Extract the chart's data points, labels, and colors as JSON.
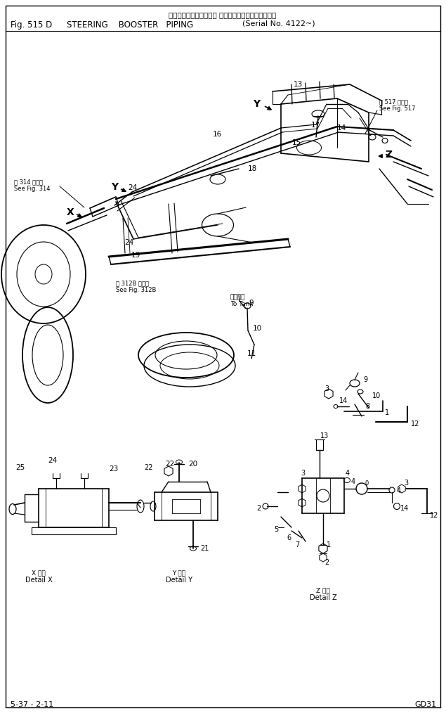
{
  "title_line1": "ステアリング　ブースタ パイピング（適　用　号　機",
  "title_line2_pre": "Fig. 515 D",
  "title_line2_main": "STEERING    BOOSTER   PIPING",
  "title_line2_paren": "(Serial No. 4122~)",
  "bottom_left": "5-37 - 2-11",
  "bottom_right": "GD31",
  "bg_color": "#ffffff",
  "fig_width": 6.35,
  "fig_height": 10.14,
  "dpi": 100
}
